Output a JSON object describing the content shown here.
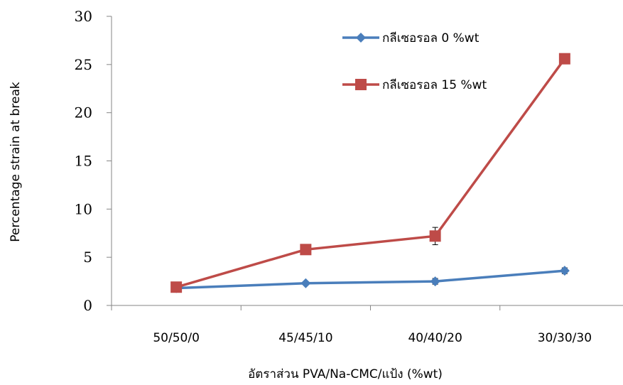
{
  "chart_data": {
    "type": "line",
    "title": "",
    "xlabel": "อัตราส่วน PVA/Na-CMC/แป้ง (%wt)",
    "ylabel": "Percentage strain at break",
    "categories": [
      "50/50/0",
      "45/45/10",
      "40/40/20",
      "30/30/30"
    ],
    "ylim": [
      0,
      30
    ],
    "yticks": [
      "0",
      "5",
      "10",
      "15",
      "20",
      "25",
      "30"
    ],
    "grid": false,
    "legend_position": "top-right",
    "series": [
      {
        "name": "กลีเซอรอล 0 %wt",
        "color": "#4a7ebb",
        "marker": "diamond",
        "values": [
          1.8,
          2.3,
          2.5,
          3.6
        ],
        "error": [
          0.1,
          0.15,
          0.3,
          0.3
        ]
      },
      {
        "name": "กลีเซอรอล 15 %wt",
        "color": "#be4b48",
        "marker": "square",
        "values": [
          1.9,
          5.8,
          7.2,
          25.6
        ],
        "error": [
          0.1,
          0.2,
          0.9,
          0.2
        ]
      }
    ]
  }
}
